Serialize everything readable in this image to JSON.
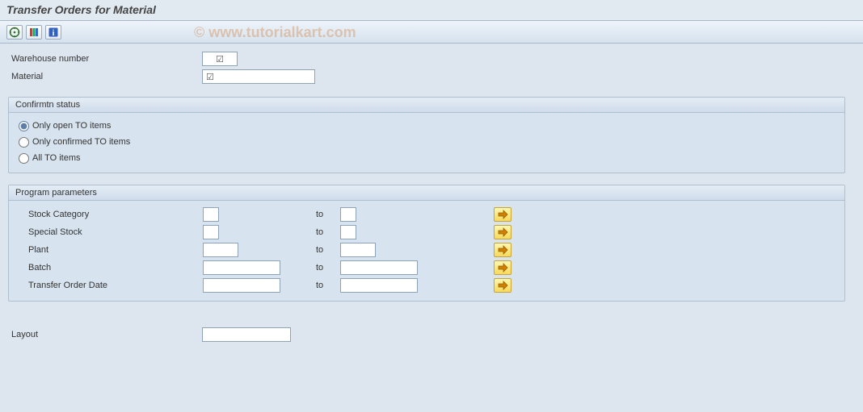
{
  "title": "Transfer Orders for Material",
  "watermark": "© www.tutorialkart.com",
  "toolbar": {
    "execute_icon": "⊕",
    "variant_icon": "≣",
    "info_icon": "i"
  },
  "top_fields": {
    "warehouse_label": "Warehouse number",
    "warehouse_value": "☑",
    "material_label": "Material",
    "material_value": "☑"
  },
  "confirm_group": {
    "title": "Confirmtn status",
    "options": [
      {
        "label": "Only open TO items",
        "checked": true
      },
      {
        "label": "Only confirmed TO items",
        "checked": false
      },
      {
        "label": "All TO items",
        "checked": false
      }
    ]
  },
  "param_group": {
    "title": "Program parameters",
    "to_label": "to",
    "rows": [
      {
        "label": "Stock Category",
        "from": "",
        "to": "",
        "w_from": 20,
        "w_to": 20
      },
      {
        "label": "Special Stock",
        "from": "",
        "to": "",
        "w_from": 20,
        "w_to": 20
      },
      {
        "label": "Plant",
        "from": "",
        "to": "",
        "w_from": 44,
        "w_to": 44
      },
      {
        "label": "Batch",
        "from": "",
        "to": "",
        "w_from": 96,
        "w_to": 96
      },
      {
        "label": "Transfer Order Date",
        "from": "",
        "to": "",
        "w_from": 96,
        "w_to": 96
      }
    ],
    "multi_icon": "⇨"
  },
  "layout": {
    "label": "Layout",
    "value": ""
  },
  "colors": {
    "page_bg": "#dde6ee",
    "group_bg": "#d7e3ee",
    "group_border": "#aebfd0",
    "input_border": "#8fa3b8"
  }
}
